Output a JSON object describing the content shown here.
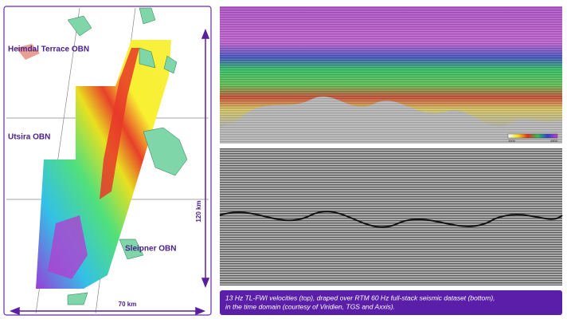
{
  "map": {
    "labels": [
      "Heimdal Terrace OBN",
      "Utsira OBN",
      "Sleipner OBN"
    ],
    "vertical_scale": "120 km",
    "horizontal_scale": "70 km"
  },
  "seismic": {
    "colorbar_min": "1500",
    "colorbar_max": "4800"
  },
  "caption": {
    "lines": [
      "13 Hz TL-FWI velocities (top), draped over RTM 60 Hz full-stack seismic dataset (bottom),",
      "in the time domain (courtesy of Viridien, TGS and Axxis)."
    ]
  }
}
